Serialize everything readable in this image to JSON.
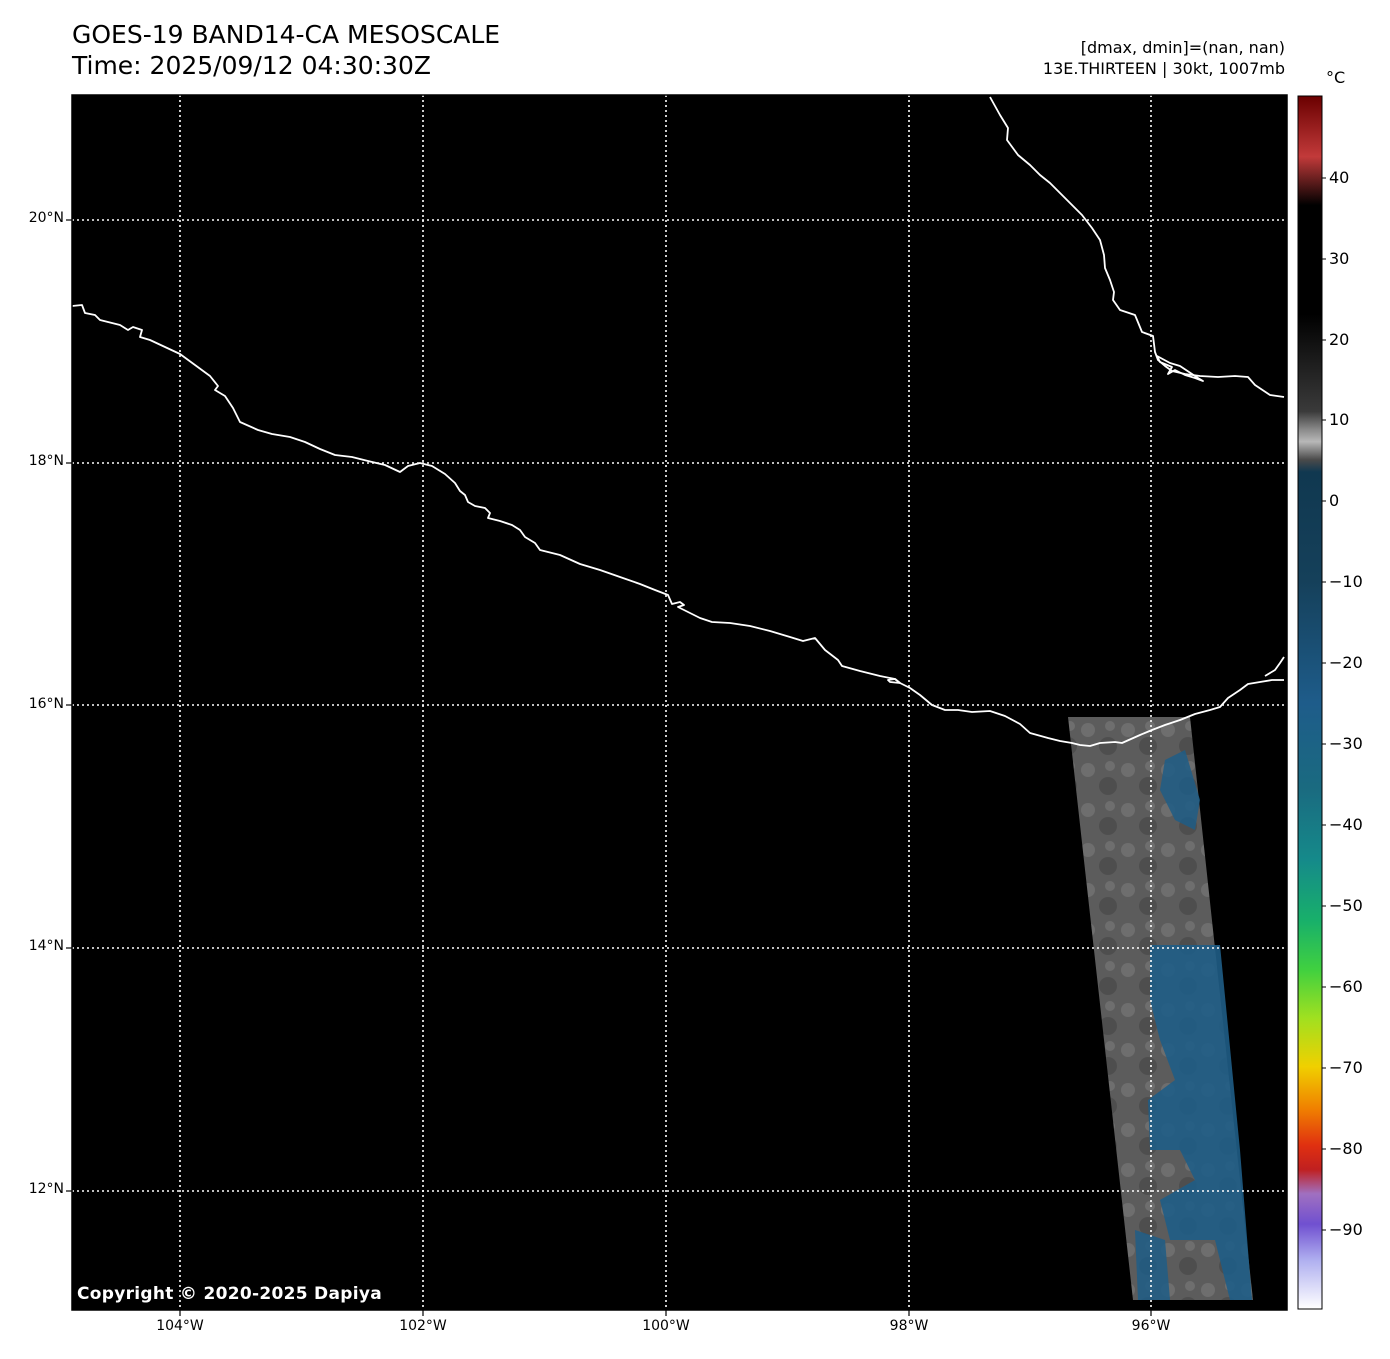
{
  "header": {
    "title": "GOES-19 BAND14-CA MESOSCALE",
    "time": "Time: 2025/09/12 04:30:30Z",
    "dmax_dmin": "[dmax, dmin]=(nan, nan)",
    "storm_info": "13E.THIRTEEN | 30kt, 1007mb"
  },
  "map": {
    "background": "#000000",
    "coastline_color": "#ffffff",
    "grid_color": "#ffffff",
    "latitude_labels": [
      "20°N",
      "18°N",
      "16°N",
      "14°N",
      "12°N"
    ],
    "longitude_labels": [
      "104°W",
      "102°W",
      "100°W",
      "98°W",
      "96°W"
    ],
    "imagery_swath_colors": [
      "#5a5a5a",
      "#1d5a85"
    ],
    "copyright": "Copyright © 2020-2025 Dapiya"
  },
  "colorbar": {
    "unit": "°C",
    "ticks": [
      "40",
      "30",
      "20",
      "10",
      "0",
      "−10",
      "−20",
      "−30",
      "−40",
      "−50",
      "−60",
      "−70",
      "−80",
      "−90"
    ]
  }
}
